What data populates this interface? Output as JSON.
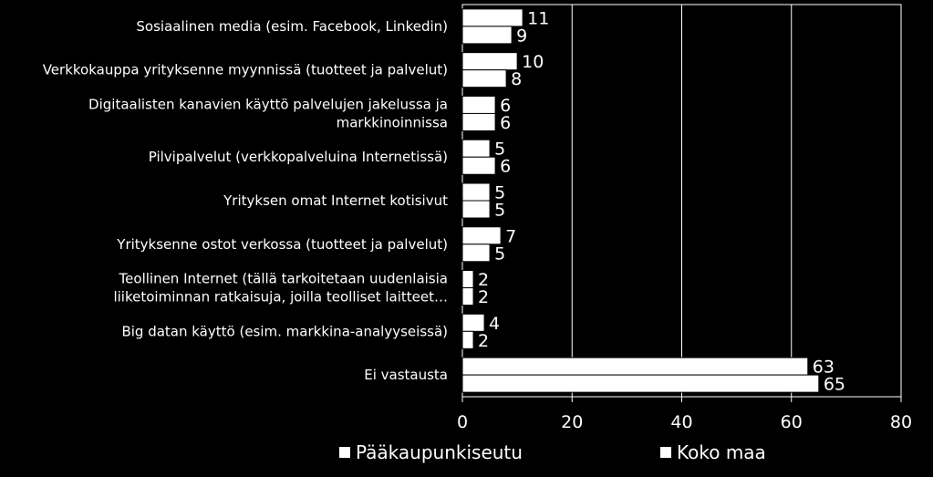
{
  "chart_data": {
    "type": "bar",
    "orientation": "horizontal",
    "categories": [
      [
        "Sosiaalinen media (esim. Facebook, Linkedin)"
      ],
      [
        "Verkkokauppa yrityksenne myynnissä (tuotteet ja palvelut)"
      ],
      [
        "Digitaalisten kanavien käyttö palvelujen jakelussa ja",
        "markkinoinnissa"
      ],
      [
        "Pilvipalvelut  (verkkopalveluina Internetissä)"
      ],
      [
        "Yrityksen omat Internet kotisivut"
      ],
      [
        "Yrityksenne ostot verkossa (tuotteet ja palvelut)"
      ],
      [
        "Teollinen Internet (tällä tarkoitetaan uudenlaisia",
        "liiketoiminnan ratkaisuja, joilla teolliset laitteet…"
      ],
      [
        "Big datan käyttö (esim. markkina-analyyseissä)"
      ],
      [
        "Ei vastausta"
      ]
    ],
    "series": [
      {
        "name": "Pääkaupunkiseutu",
        "values": [
          11,
          10,
          6,
          5,
          5,
          7,
          2,
          4,
          63
        ]
      },
      {
        "name": "Koko maa",
        "values": [
          9,
          8,
          6,
          6,
          5,
          5,
          2,
          2,
          65
        ]
      }
    ],
    "xlim": [
      0,
      80
    ],
    "xticks": [
      0,
      20,
      40,
      60,
      80
    ],
    "grid": "vertical",
    "legend_position": "bottom",
    "colors": {
      "background": "#000000",
      "bar_fill": "#ffffff",
      "bar_stroke": "#000000",
      "grid": "#ffffff"
    }
  }
}
